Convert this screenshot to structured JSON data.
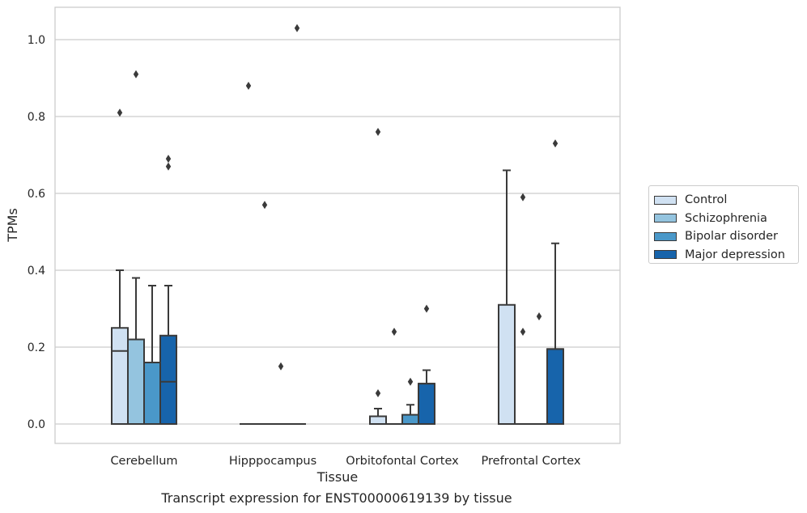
{
  "chart_data": {
    "type": "box",
    "title": "",
    "caption": "Transcript expression for ENST00000619139 by tissue",
    "xlabel": "Tissue",
    "ylabel": "TPMs",
    "ylim": [
      -0.05,
      1.08
    ],
    "yticks": [
      "0.0",
      "0.2",
      "0.4",
      "0.6",
      "0.8",
      "1.0"
    ],
    "ytick_values": [
      0.0,
      0.2,
      0.4,
      0.6,
      0.8,
      1.0
    ],
    "grid": "horizontal",
    "legend_position": "right",
    "categories": [
      "Cerebellum",
      "Hipppocampus",
      "Orbitofontal Cortex",
      "Prefrontal Cortex"
    ],
    "series": [
      {
        "name": "Control",
        "color": "#d0e1f2",
        "boxes": [
          {
            "min": 0.0,
            "q1": 0.0,
            "median": 0.19,
            "q3": 0.25,
            "max": 0.4,
            "outliers": [
              0.81
            ]
          },
          {
            "min": 0.0,
            "q1": 0.0,
            "median": 0.0,
            "q3": 0.0,
            "max": 0.0,
            "outliers": [
              0.88
            ]
          },
          {
            "min": 0.0,
            "q1": 0.0,
            "median": 0.0,
            "q3": 0.02,
            "max": 0.04,
            "outliers": [
              0.08,
              0.76
            ]
          },
          {
            "min": 0.0,
            "q1": 0.0,
            "median": 0.0,
            "q3": 0.31,
            "max": 0.66,
            "outliers": []
          }
        ]
      },
      {
        "name": "Schizophrenia",
        "color": "#94c4df",
        "boxes": [
          {
            "min": 0.0,
            "q1": 0.0,
            "median": 0.22,
            "q3": 0.22,
            "max": 0.38,
            "outliers": [
              0.91
            ]
          },
          {
            "min": 0.0,
            "q1": 0.0,
            "median": 0.0,
            "q3": 0.0,
            "max": 0.0,
            "outliers": [
              0.57
            ]
          },
          {
            "min": 0.0,
            "q1": 0.0,
            "median": 0.0,
            "q3": 0.0,
            "max": 0.0,
            "outliers": [
              0.24
            ]
          },
          {
            "min": 0.0,
            "q1": 0.0,
            "median": 0.0,
            "q3": 0.0,
            "max": 0.0,
            "outliers": [
              0.24,
              0.59
            ]
          }
        ]
      },
      {
        "name": "Bipolar disorder",
        "color": "#4a98c9",
        "boxes": [
          {
            "min": 0.0,
            "q1": 0.0,
            "median": 0.16,
            "q3": 0.16,
            "max": 0.36,
            "outliers": []
          },
          {
            "min": 0.0,
            "q1": 0.0,
            "median": 0.0,
            "q3": 0.0,
            "max": 0.0,
            "outliers": [
              0.15
            ]
          },
          {
            "min": 0.0,
            "q1": 0.0,
            "median": 0.0,
            "q3": 0.024,
            "max": 0.05,
            "outliers": [
              0.11
            ]
          },
          {
            "min": 0.0,
            "q1": 0.0,
            "median": 0.0,
            "q3": 0.0,
            "max": 0.0,
            "outliers": [
              0.28
            ]
          }
        ]
      },
      {
        "name": "Major depression",
        "color": "#1764ab",
        "boxes": [
          {
            "min": 0.0,
            "q1": 0.0,
            "median": 0.11,
            "q3": 0.23,
            "max": 0.36,
            "outliers": [
              0.67,
              0.69
            ]
          },
          {
            "min": 0.0,
            "q1": 0.0,
            "median": 0.0,
            "q3": 0.0,
            "max": 0.0,
            "outliers": [
              1.03
            ]
          },
          {
            "min": 0.0,
            "q1": 0.0,
            "median": 0.105,
            "q3": 0.105,
            "max": 0.14,
            "outliers": [
              0.3
            ]
          },
          {
            "min": 0.0,
            "q1": 0.0,
            "median": 0.195,
            "q3": 0.195,
            "max": 0.47,
            "outliers": [
              0.73
            ]
          }
        ]
      }
    ]
  }
}
